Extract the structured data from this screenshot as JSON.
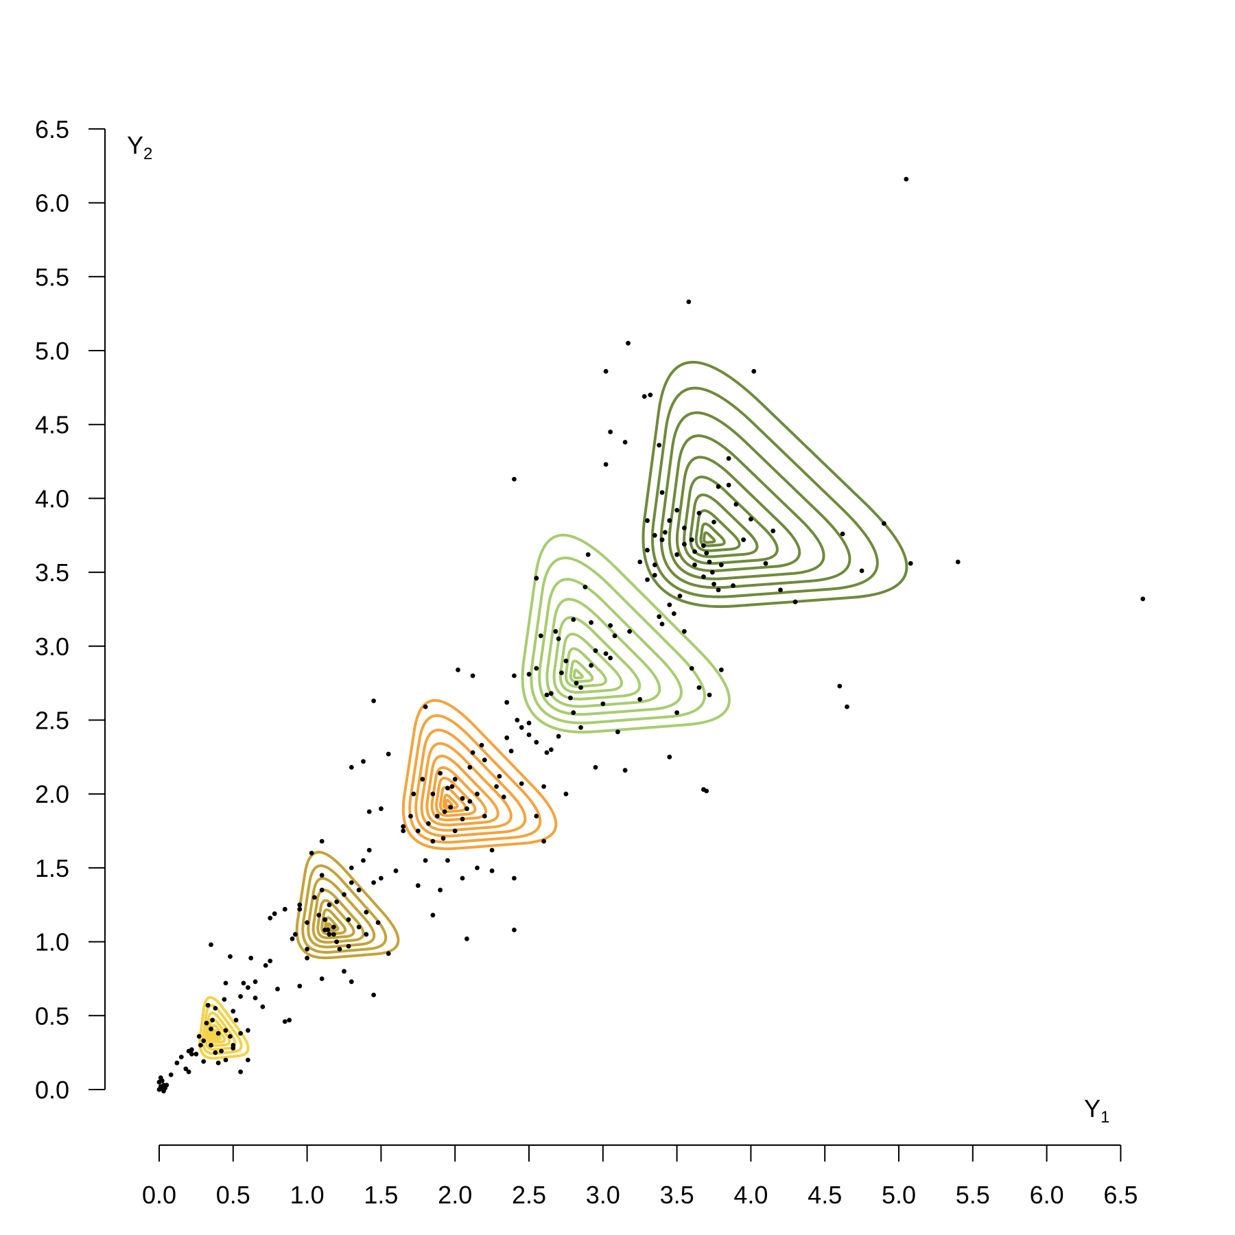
{
  "chart_data": {
    "type": "scatter",
    "title": "",
    "xlabel": {
      "main": "Y",
      "sub": "1"
    },
    "ylabel": {
      "main": "Y",
      "sub": "2"
    },
    "xlim": [
      0,
      6.5
    ],
    "ylim": [
      0,
      6.5
    ],
    "x_ticks": [
      "0.0",
      "0.5",
      "1.0",
      "1.5",
      "2.0",
      "2.5",
      "3.0",
      "3.5",
      "4.0",
      "4.5",
      "5.0",
      "5.5",
      "6.0",
      "6.5"
    ],
    "y_ticks": [
      "0.0",
      "0.5",
      "1.0",
      "1.5",
      "2.0",
      "2.5",
      "3.0",
      "3.5",
      "4.0",
      "4.5",
      "5.0",
      "5.5",
      "6.0",
      "6.5"
    ],
    "grid": false,
    "legend": "none",
    "point_color": "#000000",
    "contour_groups": [
      {
        "color": "#f3d24a",
        "center": [
          0.38,
          0.36
        ],
        "outer": {
          "left": 0.25,
          "right": 0.66,
          "bottom": 0.2,
          "top": 0.7
        },
        "levels": 7
      },
      {
        "color": "#c3a33a",
        "center": [
          1.15,
          1.1
        ],
        "outer": {
          "left": 0.88,
          "right": 1.74,
          "bottom": 0.87,
          "top": 1.74
        },
        "levels": 8
      },
      {
        "color": "#f3a43e",
        "center": [
          1.95,
          1.93
        ],
        "outer": {
          "left": 1.58,
          "right": 2.87,
          "bottom": 1.6,
          "top": 2.82
        },
        "levels": 10
      },
      {
        "color": "#a9cc71",
        "center": [
          2.82,
          2.8
        ],
        "outer": {
          "left": 2.37,
          "right": 4.11,
          "bottom": 2.38,
          "top": 4.0
        },
        "levels": 9
      },
      {
        "color": "#6f8a3c",
        "center": [
          3.7,
          3.72
        ],
        "outer": {
          "left": 3.17,
          "right": 5.38,
          "bottom": 3.22,
          "top": 5.23
        },
        "levels": 10
      }
    ],
    "points": [
      [
        0.0,
        0.0
      ],
      [
        0.01,
        0.02
      ],
      [
        0.02,
        0.01
      ],
      [
        0.0,
        0.05
      ],
      [
        0.03,
        0.03
      ],
      [
        0.02,
        0.06
      ],
      [
        0.04,
        0.01
      ],
      [
        0.01,
        0.08
      ],
      [
        0.05,
        0.03
      ],
      [
        0.03,
        -0.01
      ],
      [
        0.08,
        0.1
      ],
      [
        0.12,
        0.18
      ],
      [
        0.15,
        0.22
      ],
      [
        0.18,
        0.14
      ],
      [
        0.2,
        0.26
      ],
      [
        0.22,
        0.24
      ],
      [
        0.25,
        0.24
      ],
      [
        0.28,
        0.3
      ],
      [
        0.3,
        0.33
      ],
      [
        0.32,
        0.45
      ],
      [
        0.35,
        0.41
      ],
      [
        0.36,
        0.47
      ],
      [
        0.4,
        0.38
      ],
      [
        0.42,
        0.26
      ],
      [
        0.44,
        0.61
      ],
      [
        0.45,
        0.4
      ],
      [
        0.48,
        0.36
      ],
      [
        0.5,
        0.53
      ],
      [
        0.52,
        0.47
      ],
      [
        0.55,
        0.63
      ],
      [
        0.55,
        0.12
      ],
      [
        0.57,
        0.72
      ],
      [
        0.6,
        0.69
      ],
      [
        0.62,
        0.89
      ],
      [
        0.65,
        0.62
      ],
      [
        0.7,
        0.56
      ],
      [
        0.72,
        0.84
      ],
      [
        0.75,
        0.87
      ],
      [
        0.8,
        0.68
      ],
      [
        0.85,
        0.46
      ],
      [
        0.88,
        0.47
      ],
      [
        0.35,
        0.98
      ],
      [
        0.35,
        0.3
      ],
      [
        0.22,
        0.27
      ],
      [
        0.3,
        0.19
      ],
      [
        0.38,
        0.25
      ],
      [
        0.5,
        0.28
      ],
      [
        0.45,
        0.2
      ],
      [
        0.55,
        0.38
      ],
      [
        0.27,
        0.36
      ],
      [
        0.48,
        0.9
      ],
      [
        0.4,
        0.18
      ],
      [
        0.6,
        0.2
      ],
      [
        0.33,
        0.57
      ],
      [
        0.2,
        0.12
      ],
      [
        0.6,
        0.4
      ],
      [
        0.5,
        0.3
      ],
      [
        0.38,
        0.55
      ],
      [
        0.65,
        0.73
      ],
      [
        0.45,
        0.72
      ],
      [
        0.75,
        1.16
      ],
      [
        0.78,
        1.19
      ],
      [
        0.85,
        1.22
      ],
      [
        0.9,
        1.02
      ],
      [
        0.95,
        1.25
      ],
      [
        1.0,
        0.95
      ],
      [
        1.05,
        1.3
      ],
      [
        1.08,
        1.18
      ],
      [
        1.1,
        1.45
      ],
      [
        1.12,
        1.08
      ],
      [
        1.15,
        1.25
      ],
      [
        1.18,
        1.1
      ],
      [
        1.2,
        1.0
      ],
      [
        1.22,
        0.95
      ],
      [
        1.25,
        1.32
      ],
      [
        1.28,
        1.15
      ],
      [
        1.3,
        1.4
      ],
      [
        1.35,
        1.35
      ],
      [
        1.38,
        1.55
      ],
      [
        1.4,
        1.2
      ],
      [
        1.42,
        1.62
      ],
      [
        1.45,
        1.4
      ],
      [
        1.48,
        1.13
      ],
      [
        1.55,
        0.92
      ],
      [
        1.6,
        1.48
      ],
      [
        1.65,
        1.75
      ],
      [
        0.95,
        0.7
      ],
      [
        1.0,
        0.89
      ],
      [
        1.1,
        0.75
      ],
      [
        1.25,
        0.8
      ],
      [
        1.3,
        0.73
      ],
      [
        1.45,
        0.64
      ],
      [
        1.15,
        1.05
      ],
      [
        1.2,
        1.27
      ],
      [
        1.4,
        1.05
      ],
      [
        1.03,
        1.6
      ],
      [
        1.1,
        1.68
      ],
      [
        1.3,
        1.5
      ],
      [
        1.5,
        1.43
      ],
      [
        1.35,
        1.1
      ],
      [
        1.28,
        0.97
      ],
      [
        1.12,
        1.15
      ],
      [
        1.18,
        1.05
      ],
      [
        1.1,
        1.35
      ],
      [
        1.0,
        1.13
      ],
      [
        0.92,
        1.05
      ],
      [
        0.95,
        1.22
      ],
      [
        1.14,
        1.08
      ],
      [
        1.3,
        2.18
      ],
      [
        1.38,
        2.22
      ],
      [
        1.42,
        1.88
      ],
      [
        1.45,
        2.63
      ],
      [
        1.5,
        1.9
      ],
      [
        1.55,
        2.27
      ],
      [
        1.65,
        1.78
      ],
      [
        1.7,
        1.85
      ],
      [
        1.75,
        1.75
      ],
      [
        1.78,
        2.1
      ],
      [
        1.8,
        2.59
      ],
      [
        1.85,
        1.68
      ],
      [
        1.88,
        1.85
      ],
      [
        1.9,
        2.14
      ],
      [
        1.92,
        1.7
      ],
      [
        1.95,
        2.04
      ],
      [
        1.97,
        1.91
      ],
      [
        2.0,
        2.1
      ],
      [
        2.02,
        2.84
      ],
      [
        2.05,
        1.83
      ],
      [
        2.08,
        1.9
      ],
      [
        2.1,
        2.18
      ],
      [
        2.12,
        2.28
      ],
      [
        2.15,
        2.0
      ],
      [
        2.18,
        2.33
      ],
      [
        2.2,
        1.85
      ],
      [
        2.25,
        1.62
      ],
      [
        2.3,
        2.12
      ],
      [
        2.35,
        2.38
      ],
      [
        2.38,
        2.29
      ],
      [
        2.4,
        1.43
      ],
      [
        2.45,
        2.07
      ],
      [
        2.5,
        2.81
      ],
      [
        2.55,
        2.35
      ],
      [
        2.6,
        2.05
      ],
      [
        1.95,
        1.55
      ],
      [
        2.05,
        1.43
      ],
      [
        2.15,
        1.5
      ],
      [
        2.25,
        1.48
      ],
      [
        2.4,
        1.08
      ],
      [
        1.8,
        1.55
      ],
      [
        1.75,
        1.38
      ],
      [
        1.85,
        1.18
      ],
      [
        2.08,
        1.02
      ],
      [
        1.9,
        1.35
      ],
      [
        2.0,
        1.75
      ],
      [
        2.1,
        1.95
      ],
      [
        1.85,
        2.0
      ],
      [
        2.2,
        2.23
      ],
      [
        1.72,
        2.0
      ],
      [
        2.12,
        2.8
      ],
      [
        1.98,
        2.05
      ],
      [
        2.05,
        1.97
      ],
      [
        2.33,
        1.98
      ],
      [
        1.82,
        1.8
      ],
      [
        2.6,
        1.68
      ],
      [
        2.42,
        2.5
      ],
      [
        1.93,
        1.88
      ],
      [
        2.28,
        2.05
      ],
      [
        2.55,
        1.85
      ],
      [
        2.35,
        2.62
      ],
      [
        2.4,
        2.8
      ],
      [
        2.45,
        2.45
      ],
      [
        2.5,
        2.48
      ],
      [
        2.55,
        3.46
      ],
      [
        2.62,
        2.67
      ],
      [
        2.65,
        2.3
      ],
      [
        2.7,
        3.05
      ],
      [
        2.72,
        2.82
      ],
      [
        2.75,
        2.9
      ],
      [
        2.78,
        2.65
      ],
      [
        2.8,
        2.55
      ],
      [
        2.85,
        2.72
      ],
      [
        2.88,
        3.4
      ],
      [
        2.9,
        3.62
      ],
      [
        2.92,
        2.87
      ],
      [
        2.95,
        2.97
      ],
      [
        3.0,
        2.61
      ],
      [
        3.02,
        2.95
      ],
      [
        3.05,
        3.14
      ],
      [
        3.08,
        3.07
      ],
      [
        3.1,
        2.42
      ],
      [
        3.15,
        2.16
      ],
      [
        3.18,
        3.1
      ],
      [
        3.25,
        2.64
      ],
      [
        3.3,
        3.45
      ],
      [
        3.35,
        3.55
      ],
      [
        3.4,
        3.15
      ],
      [
        3.45,
        2.25
      ],
      [
        3.5,
        2.55
      ],
      [
        3.55,
        3.1
      ],
      [
        3.6,
        2.85
      ],
      [
        3.65,
        2.72
      ],
      [
        3.68,
        2.03
      ],
      [
        3.7,
        2.02
      ],
      [
        3.72,
        2.67
      ],
      [
        3.8,
        2.84
      ],
      [
        2.58,
        3.07
      ],
      [
        2.65,
        2.68
      ],
      [
        2.55,
        2.85
      ],
      [
        2.95,
        2.18
      ],
      [
        2.75,
        2.0
      ],
      [
        2.85,
        2.45
      ],
      [
        2.7,
        2.39
      ],
      [
        2.68,
        3.1
      ],
      [
        2.62,
        2.28
      ],
      [
        2.82,
        2.75
      ],
      [
        3.05,
        2.92
      ],
      [
        2.92,
        3.16
      ],
      [
        2.8,
        3.18
      ],
      [
        2.5,
        2.4
      ],
      [
        2.4,
        4.13
      ],
      [
        3.02,
        4.86
      ],
      [
        3.02,
        4.23
      ],
      [
        3.05,
        4.45
      ],
      [
        3.15,
        4.38
      ],
      [
        3.17,
        5.05
      ],
      [
        3.28,
        4.69
      ],
      [
        3.32,
        4.7
      ],
      [
        3.38,
        4.36
      ],
      [
        3.3,
        3.85
      ],
      [
        3.35,
        3.75
      ],
      [
        3.4,
        4.04
      ],
      [
        3.45,
        3.85
      ],
      [
        3.5,
        3.62
      ],
      [
        3.55,
        3.69
      ],
      [
        3.58,
        5.33
      ],
      [
        3.6,
        3.72
      ],
      [
        3.65,
        3.9
      ],
      [
        3.68,
        3.47
      ],
      [
        3.7,
        3.63
      ],
      [
        3.75,
        3.84
      ],
      [
        3.78,
        3.38
      ],
      [
        3.8,
        3.55
      ],
      [
        3.85,
        4.09
      ],
      [
        3.9,
        3.96
      ],
      [
        3.95,
        3.72
      ],
      [
        4.0,
        3.86
      ],
      [
        4.02,
        4.86
      ],
      [
        4.1,
        3.56
      ],
      [
        4.15,
        3.78
      ],
      [
        4.2,
        3.38
      ],
      [
        4.3,
        3.3
      ],
      [
        4.62,
        3.76
      ],
      [
        4.6,
        2.73
      ],
      [
        4.65,
        2.59
      ],
      [
        4.75,
        3.51
      ],
      [
        4.9,
        3.83
      ],
      [
        5.05,
        6.16
      ],
      [
        5.08,
        3.56
      ],
      [
        5.4,
        3.57
      ],
      [
        6.65,
        3.32
      ],
      [
        3.25,
        3.57
      ],
      [
        3.3,
        3.65
      ],
      [
        3.35,
        3.48
      ],
      [
        3.4,
        3.72
      ],
      [
        3.45,
        3.28
      ],
      [
        3.48,
        3.22
      ],
      [
        3.38,
        3.2
      ],
      [
        3.5,
        3.92
      ],
      [
        3.55,
        3.8
      ],
      [
        3.62,
        3.64
      ],
      [
        3.72,
        3.57
      ],
      [
        3.74,
        3.5
      ],
      [
        3.68,
        3.68
      ],
      [
        3.78,
        4.08
      ],
      [
        3.85,
        4.27
      ],
      [
        3.88,
        3.41
      ],
      [
        3.75,
        3.42
      ],
      [
        3.62,
        3.55
      ],
      [
        3.42,
        3.77
      ],
      [
        3.52,
        3.34
      ]
    ]
  }
}
